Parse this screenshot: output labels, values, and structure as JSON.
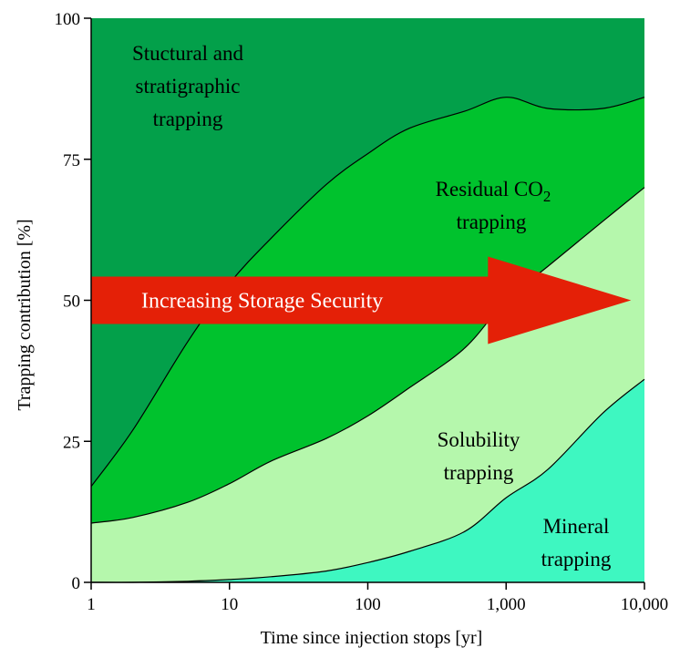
{
  "chart_data": {
    "type": "area",
    "stacked": true,
    "x_scale": "log",
    "x": [
      1,
      2,
      5,
      10,
      20,
      50,
      100,
      200,
      500,
      1000,
      2000,
      5000,
      10000
    ],
    "xlim": [
      1,
      10000
    ],
    "ylim": [
      0,
      100
    ],
    "xlabel": "Time since injection stops [yr]",
    "ylabel": "Trapping contribution [%]",
    "x_ticks": [
      {
        "value": 1,
        "label": "1"
      },
      {
        "value": 10,
        "label": "10"
      },
      {
        "value": 100,
        "label": "100"
      },
      {
        "value": 1000,
        "label": "1,000"
      },
      {
        "value": 10000,
        "label": "10,000"
      }
    ],
    "y_ticks": [
      {
        "value": 0,
        "label": "0"
      },
      {
        "value": 25,
        "label": "25"
      },
      {
        "value": 50,
        "label": "50"
      },
      {
        "value": 75,
        "label": "75"
      },
      {
        "value": 100,
        "label": "100"
      }
    ],
    "series": [
      {
        "name": "Mineral trapping",
        "label_lines": [
          "Mineral",
          "trapping"
        ],
        "color": "#3ef7c1",
        "values": [
          0,
          0,
          0.2,
          0.5,
          1,
          2,
          3.5,
          5.5,
          9,
          15,
          20,
          30,
          36
        ]
      },
      {
        "name": "Solubility trapping",
        "label_lines": [
          "Solubility",
          "trapping"
        ],
        "color": "#b5f7ac",
        "values": [
          10.5,
          11.5,
          14,
          17,
          20.5,
          23.5,
          26,
          29,
          32.5,
          35,
          36,
          34,
          34
        ]
      },
      {
        "name": "Residual CO2 trapping",
        "label_lines": [
          "Residual CO",
          "2",
          "trapping"
        ],
        "color": "#00c22d",
        "values": [
          6.5,
          15.5,
          28.5,
          35.5,
          39.5,
          45,
          46.5,
          46,
          42,
          36,
          28,
          20,
          16
        ]
      },
      {
        "name": "Stuctural and stratigraphic trapping",
        "label_lines": [
          "Stuctural and",
          "stratigraphic",
          "trapping"
        ],
        "color": "#03a04a",
        "values": [
          83,
          73,
          57.3,
          47,
          39,
          29.5,
          24,
          19.5,
          16.5,
          14,
          16,
          16,
          14
        ]
      }
    ],
    "arrow": {
      "label": "Increasing Storage Security",
      "color": "#e42007",
      "x_start": 1,
      "x_end": 8000,
      "y_center": 50
    }
  }
}
